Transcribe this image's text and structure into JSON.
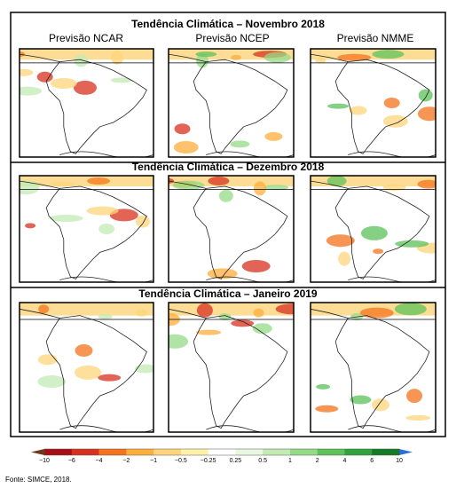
{
  "columns": [
    "Previsão NCAR",
    "Previsão NCEP",
    "Previsão NMME"
  ],
  "panels": [
    "Tendência Climática – Novembro 2018",
    "Tendência Climática – Dezembro 2018",
    "Tendência Climática – Janeiro 2019"
  ],
  "legend": {
    "labels": [
      "−10",
      "−6",
      "−4",
      "−2",
      "−1",
      "−0.5",
      "−0.25",
      "0.25",
      "0.5",
      "1",
      "2",
      "4",
      "6",
      "10"
    ],
    "colors": [
      "#a50f15",
      "#d7301f",
      "#f4731b",
      "#fdae3b",
      "#fdd47a",
      "#fff1a8",
      "#ffffff",
      "#e8f7e0",
      "#c2ebb4",
      "#94db87",
      "#5cc25a",
      "#2ea33e",
      "#137a26"
    ],
    "extend_colors": [
      "#6b3a1e",
      "#2b6fd6"
    ]
  },
  "source": "Fonte: SIMCE, 2018."
}
